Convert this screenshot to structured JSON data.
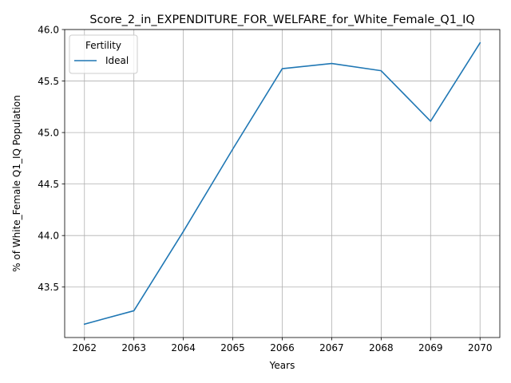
{
  "chart_data": {
    "type": "line",
    "title": "Score_2_in_EXPENDITURE_FOR_WELFARE_for_White_Female_Q1_IQ",
    "xlabel": "Years",
    "ylabel": "% of White_Female Q1_IQ Population",
    "x": [
      2062,
      2063,
      2064,
      2065,
      2066,
      2067,
      2068,
      2069,
      2070
    ],
    "x_tick_labels": [
      "2062",
      "2063",
      "2064",
      "2065",
      "2066",
      "2067",
      "2068",
      "2069",
      "2070"
    ],
    "y_ticks": [
      43.5,
      44.0,
      44.5,
      45.0,
      45.5,
      46.0
    ],
    "y_tick_labels": [
      "43.5",
      "44.0",
      "44.5",
      "45.0",
      "45.5",
      "46.0"
    ],
    "xlim": [
      2061.6,
      2070.4
    ],
    "ylim": [
      43.01,
      46.0
    ],
    "grid": true,
    "legend": {
      "title": "Fertility",
      "placement": "upper-left"
    },
    "series": [
      {
        "name": "Ideal",
        "color": "#1f77b4",
        "values": [
          43.14,
          43.27,
          44.04,
          44.84,
          45.62,
          45.67,
          45.6,
          45.11,
          45.87
        ]
      }
    ]
  }
}
